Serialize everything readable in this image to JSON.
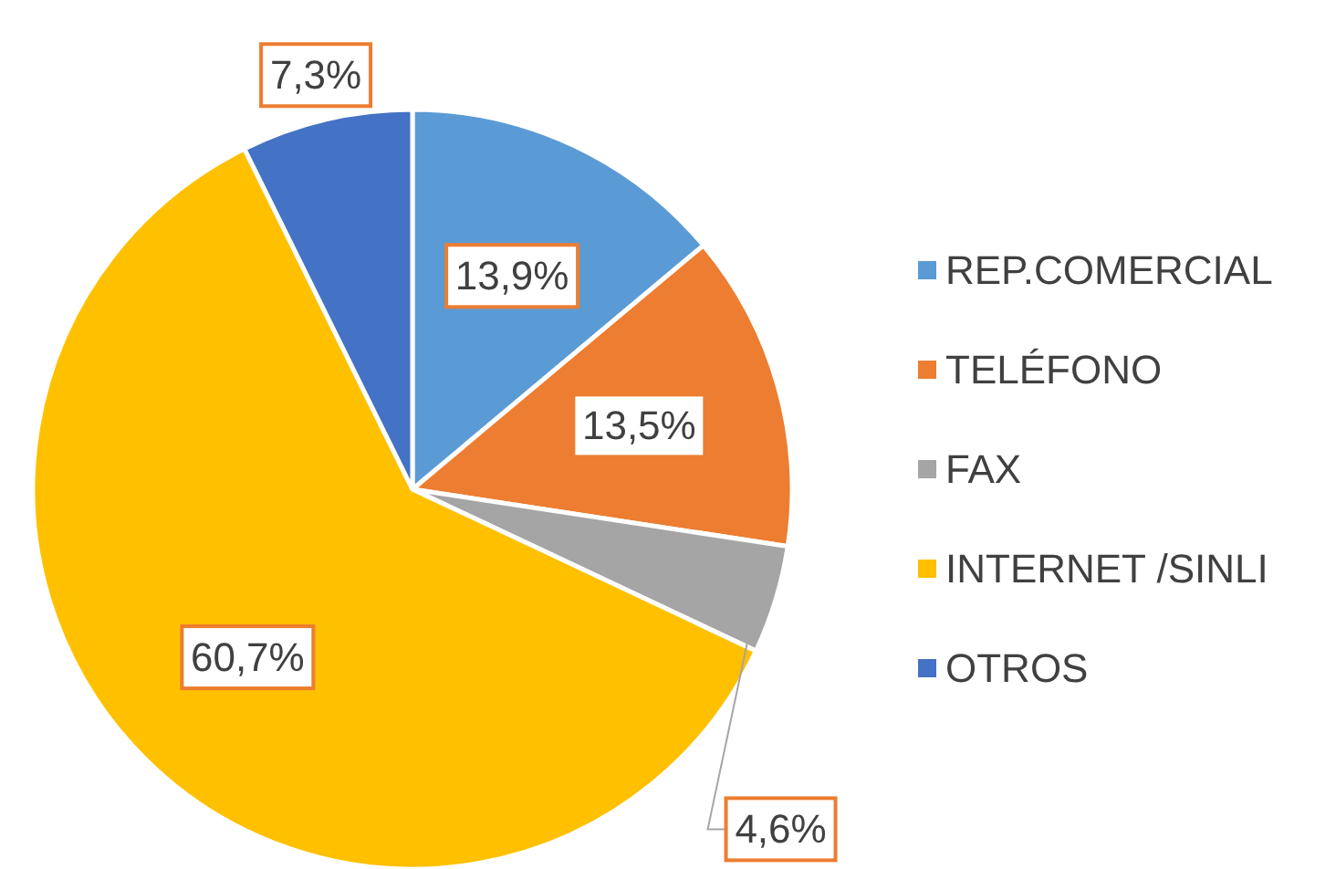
{
  "chart_data": {
    "type": "pie",
    "categories": [
      "REP.COMERCIAL",
      "TELÉFONO",
      "FAX",
      "INTERNET /SINLI",
      "OTROS"
    ],
    "values": [
      13.9,
      13.5,
      4.6,
      60.7,
      7.3
    ],
    "colors": [
      "#5b9bd5",
      "#ed7d31",
      "#a5a5a5",
      "#ffc000",
      "#4472c4"
    ],
    "value_labels": [
      "13,9%",
      "13,5%",
      "4,6%",
      "60,7%",
      "7,3%"
    ],
    "legend": "right"
  }
}
